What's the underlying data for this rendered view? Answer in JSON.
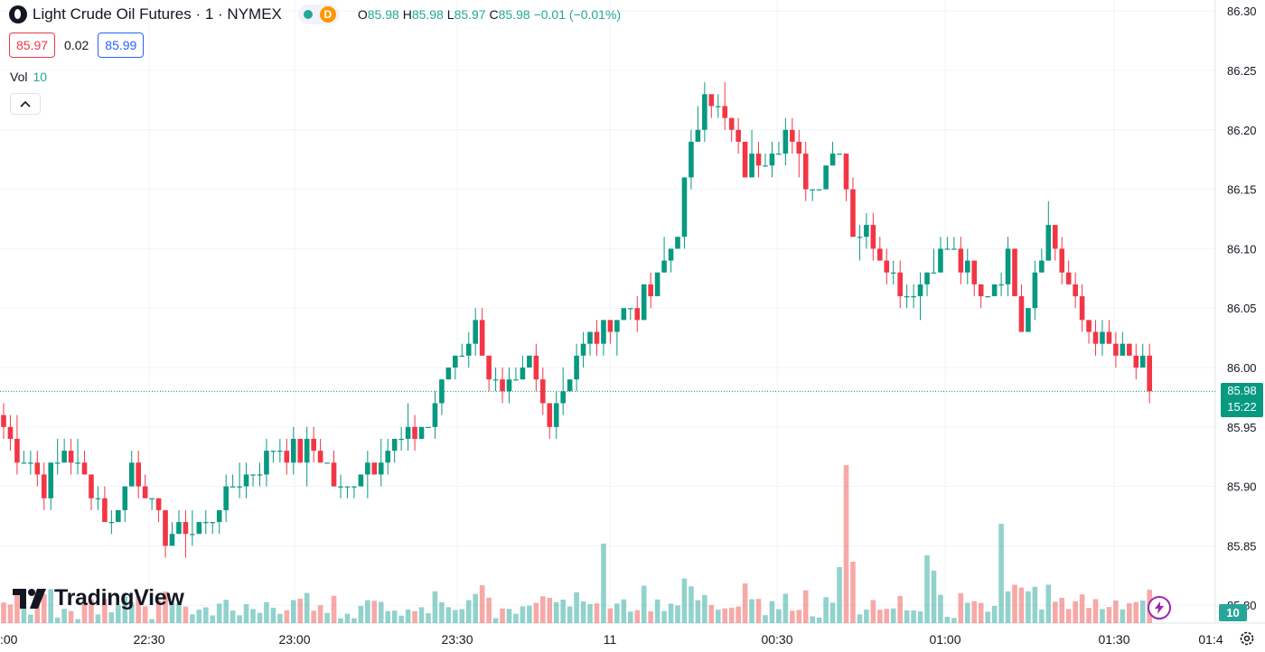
{
  "header": {
    "title": "Light Crude Oil Futures · 1 · NYMEX",
    "badge": "D",
    "ohlc": {
      "o_label": "O",
      "o": "85.98",
      "h_label": "H",
      "h": "85.98",
      "l_label": "L",
      "l": "85.97",
      "c_label": "C",
      "c": "85.98",
      "change": "−0.01 (−0.01%)"
    }
  },
  "quote": {
    "bid": "85.97",
    "spread": "0.02",
    "ask": "85.99"
  },
  "volume_legend": {
    "label": "Vol",
    "value": "10"
  },
  "brand": "TradingView",
  "last_price": {
    "price": "85.98",
    "countdown": "15:22"
  },
  "last_volume": "10",
  "colors": {
    "up": "#089981",
    "down": "#f23645",
    "vol_up": "#26a69a",
    "vol_down": "#ef5350",
    "grid": "#f0f3fa"
  },
  "icons": {
    "logo": "symbol-logo-icon",
    "collapse": "chevron-up-icon",
    "bolt": "lightning-icon",
    "settings": "gear-icon"
  },
  "chart_data": {
    "type": "candlestick",
    "y_ticks": [
      "86.30",
      "86.25",
      "86.20",
      "86.15",
      "86.10",
      "86.05",
      "86.00",
      "85.95",
      "85.90",
      "85.85",
      "85.80"
    ],
    "x_ticks": [
      ":00",
      "22:30",
      "23:00",
      "23:30",
      "11",
      "00:30",
      "01:00",
      "01:30",
      "01:4"
    ],
    "ylim": [
      85.79,
      86.31
    ],
    "last_price": 85.98,
    "legs": [
      [
        0,
        85.95
      ],
      [
        6,
        85.9
      ],
      [
        9,
        85.93
      ],
      [
        16,
        85.87
      ],
      [
        19,
        85.92
      ],
      [
        24,
        85.86
      ],
      [
        30,
        85.87
      ],
      [
        34,
        85.9
      ],
      [
        40,
        85.93
      ],
      [
        47,
        85.93
      ],
      [
        50,
        85.89
      ],
      [
        54,
        85.92
      ],
      [
        63,
        85.95
      ],
      [
        66,
        86.0
      ],
      [
        70,
        86.03
      ],
      [
        74,
        85.97
      ],
      [
        78,
        86.0
      ],
      [
        81,
        85.96
      ],
      [
        86,
        86.02
      ],
      [
        96,
        86.06
      ],
      [
        100,
        86.12
      ],
      [
        104,
        86.24
      ],
      [
        110,
        86.17
      ],
      [
        116,
        86.2
      ],
      [
        120,
        86.15
      ],
      [
        124,
        86.19
      ],
      [
        126,
        86.12
      ],
      [
        130,
        86.1
      ],
      [
        134,
        86.06
      ],
      [
        140,
        86.1
      ],
      [
        145,
        86.06
      ],
      [
        149,
        86.09
      ],
      [
        151,
        86.04
      ],
      [
        155,
        86.12
      ],
      [
        159,
        86.05
      ],
      [
        163,
        86.02
      ],
      [
        166,
        86.01
      ],
      [
        170,
        85.99
      ]
    ],
    "candle_count": 171
  }
}
